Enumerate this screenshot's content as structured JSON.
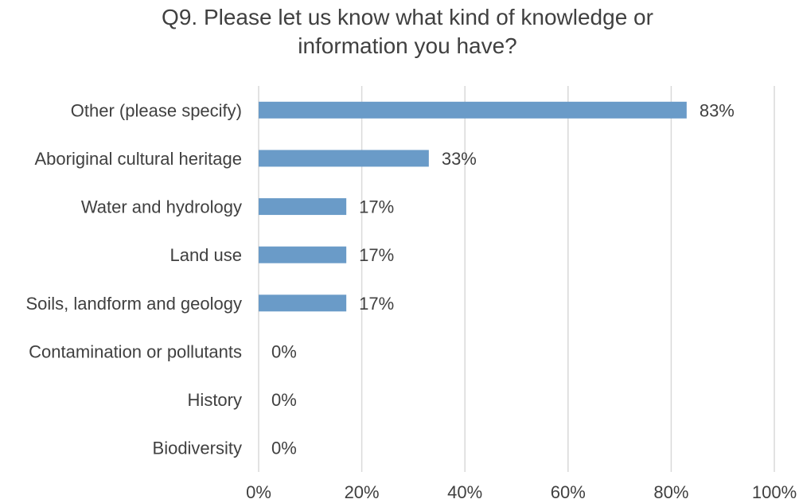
{
  "chart_data": {
    "type": "bar",
    "orientation": "horizontal",
    "title_lines": [
      "Q9. Please let us know what kind of knowledge or",
      "information you have?"
    ],
    "categories": [
      "Other (please specify)",
      "Aboriginal cultural heritage",
      "Water and hydrology",
      "Land use",
      "Soils, landform and geology",
      "Contamination or pollutants",
      "History",
      "Biodiversity"
    ],
    "values": [
      83,
      33,
      17,
      17,
      17,
      0,
      0,
      0
    ],
    "value_labels": [
      "83%",
      "33%",
      "17%",
      "17%",
      "17%",
      "0%",
      "0%",
      "0%"
    ],
    "xticks": [
      "0%",
      "20%",
      "40%",
      "60%",
      "80%",
      "100%"
    ],
    "xlim": [
      0,
      100
    ],
    "grid": true,
    "legend": "none",
    "bar_color": "#6A9BC8",
    "gridline_color": "#D9D9D9",
    "text_color": "#404040"
  }
}
